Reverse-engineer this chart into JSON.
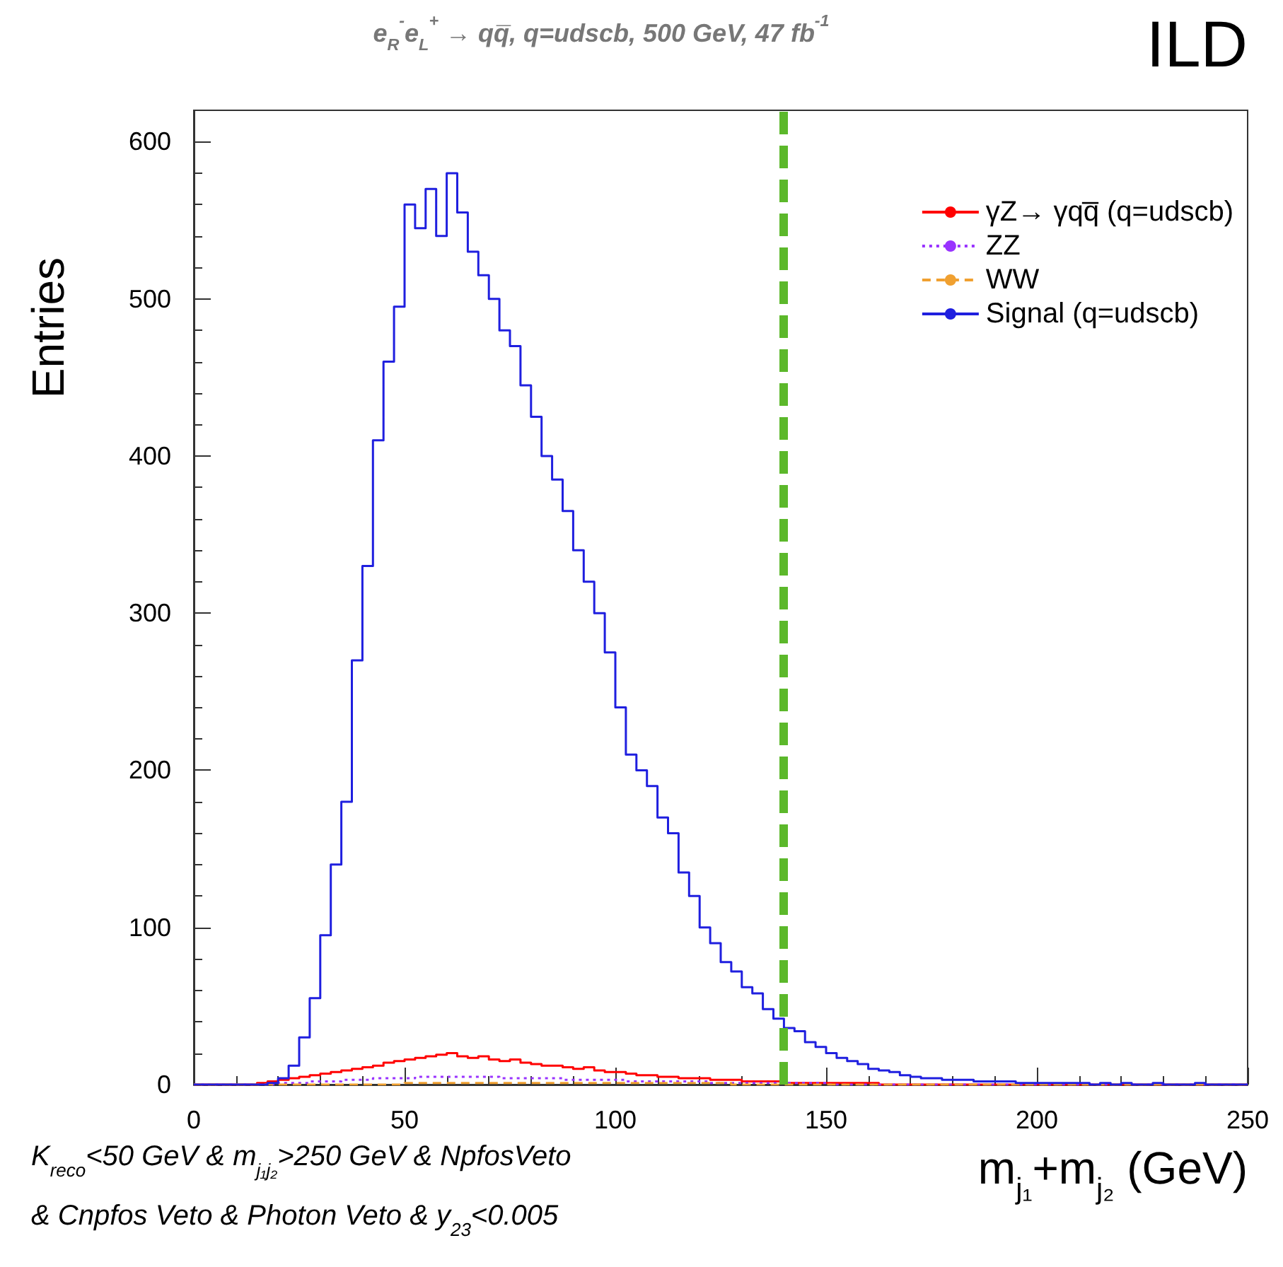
{
  "chart_data": {
    "type": "histogram",
    "title": "e$_{R}$$^{-}$e$_{L}$$^{+}$ → qq̅, q=udscb, 500 GeV, 47 fb$^{-1}$",
    "xlabel": "m$_{j₁}$+m$_{j₂}$ (GeV)",
    "ylabel": "Entries",
    "bins": [
      0,
      2.5,
      5,
      7.5,
      10,
      12.5,
      15,
      17.5,
      20,
      22.5,
      25,
      27.5,
      30,
      32.5,
      35,
      37.5,
      40,
      42.5,
      45,
      47.5,
      50,
      52.5,
      55,
      57.5,
      60,
      62.5,
      65,
      67.5,
      70,
      72.5,
      75,
      77.5,
      80,
      82.5,
      85,
      87.5,
      90,
      92.5,
      95,
      97.5,
      100,
      102.5,
      105,
      107.5,
      110,
      112.5,
      115,
      117.5,
      120,
      122.5,
      125,
      127.5,
      130,
      132.5,
      135,
      137.5,
      140,
      142.5,
      145,
      147.5,
      150,
      152.5,
      155,
      157.5,
      160,
      162.5,
      165,
      167.5,
      170,
      172.5,
      175,
      177.5,
      180,
      182.5,
      185,
      187.5,
      190,
      192.5,
      195,
      197.5,
      200,
      202.5,
      205,
      207.5,
      210,
      212.5,
      215,
      217.5,
      220,
      222.5,
      225,
      227.5,
      230,
      232.5,
      235,
      237.5,
      240,
      242.5,
      245,
      247.5,
      250
    ],
    "series": [
      {
        "name": "γZ→ γqq̅ (q=udscb)",
        "color": "#ff0000",
        "line_style": "solid",
        "values": [
          0,
          0,
          0,
          0,
          0,
          0,
          1,
          2,
          3,
          4,
          5,
          6,
          7,
          8,
          9,
          10,
          11,
          12,
          14,
          15,
          16,
          17,
          18,
          19,
          20,
          18,
          17,
          18,
          16,
          15,
          16,
          14,
          13,
          12,
          12,
          11,
          10,
          11,
          9,
          8,
          8,
          7,
          6,
          6,
          5,
          5,
          4,
          4,
          4,
          3,
          3,
          3,
          2,
          2,
          2,
          2,
          1,
          1,
          1,
          1,
          1,
          1,
          1,
          1,
          1,
          0,
          0,
          0,
          0,
          0,
          0,
          0,
          0,
          0,
          0,
          0,
          0,
          0,
          0,
          0,
          0,
          0,
          0,
          0,
          0,
          0,
          0,
          0,
          0,
          0,
          0,
          0,
          0,
          0,
          0,
          0,
          0,
          0,
          0,
          0
        ]
      },
      {
        "name": "ZZ",
        "color": "#9933ff",
        "line_style": "dotted",
        "values": [
          0,
          0,
          0,
          0,
          0,
          0,
          0,
          0,
          1,
          1,
          1,
          2,
          2,
          2,
          3,
          3,
          3,
          4,
          4,
          4,
          4,
          5,
          5,
          5,
          5,
          5,
          5,
          5,
          5,
          4,
          4,
          4,
          4,
          4,
          4,
          3,
          3,
          3,
          3,
          3,
          3,
          2,
          2,
          2,
          2,
          2,
          2,
          2,
          2,
          1,
          1,
          1,
          1,
          1,
          1,
          1,
          1,
          1,
          1,
          1,
          0,
          0,
          0,
          0,
          0,
          0,
          0,
          0,
          0,
          0,
          0,
          0,
          0,
          0,
          0,
          0,
          0,
          0,
          0,
          0,
          0,
          0,
          0,
          0,
          0,
          0,
          0,
          0,
          0,
          0,
          0,
          0,
          0,
          0,
          0,
          0,
          0,
          0,
          0,
          0
        ]
      },
      {
        "name": "WW",
        "color": "#f0a030",
        "line_style": "dashed",
        "values": [
          0,
          0,
          0,
          0,
          0,
          0,
          0,
          0,
          0,
          0,
          0,
          0,
          0,
          0,
          0,
          0,
          0,
          0,
          0,
          0,
          1,
          1,
          1,
          1,
          1,
          1,
          1,
          1,
          1,
          1,
          1,
          1,
          1,
          1,
          1,
          1,
          1,
          1,
          1,
          1,
          1,
          1,
          1,
          1,
          1,
          1,
          1,
          1,
          1,
          1,
          1,
          0,
          0,
          0,
          0,
          0,
          0,
          0,
          0,
          0,
          0,
          0,
          0,
          0,
          0,
          0,
          0,
          0,
          0,
          0,
          0,
          0,
          0,
          0,
          0,
          0,
          0,
          0,
          0,
          0,
          0,
          0,
          0,
          0,
          0,
          0,
          0,
          0,
          0,
          0,
          0,
          0,
          0,
          0,
          0,
          0,
          0,
          0,
          0,
          0
        ]
      },
      {
        "name": "Signal (q=udscb)",
        "color": "#1f1fdf",
        "line_style": "solid",
        "values": [
          0,
          0,
          0,
          0,
          0,
          0,
          0,
          1,
          4,
          12,
          30,
          55,
          95,
          140,
          180,
          270,
          330,
          410,
          460,
          495,
          560,
          545,
          570,
          540,
          580,
          555,
          530,
          515,
          500,
          480,
          470,
          445,
          425,
          400,
          385,
          365,
          340,
          320,
          300,
          275,
          240,
          210,
          200,
          190,
          170,
          160,
          135,
          120,
          100,
          90,
          78,
          72,
          62,
          58,
          48,
          42,
          36,
          34,
          27,
          24,
          20,
          17,
          15,
          13,
          10,
          9,
          8,
          6,
          5,
          4,
          4,
          3,
          3,
          3,
          2,
          2,
          2,
          2,
          1,
          1,
          1,
          1,
          1,
          1,
          1,
          0,
          1,
          0,
          1,
          0,
          0,
          1,
          0,
          0,
          0,
          1,
          0,
          0,
          0,
          0
        ]
      }
    ],
    "xlim": [
      0,
      250
    ],
    "xticks": [
      0,
      50,
      100,
      150,
      200,
      250
    ],
    "ylim": [
      0,
      620
    ],
    "yticks": [
      0,
      100,
      200,
      300,
      400,
      500,
      600
    ],
    "legend": "top right",
    "ref_lines": [
      {
        "axis": "x",
        "value": 140,
        "color": "#5cb82b",
        "line_style": "dashed"
      }
    ],
    "annotations": [
      "ILD",
      "K$_{reco}$<50 GeV & m$_{j₁j₂}$>250 GeV & NpfosVeto",
      "& Cnpfos Veto & Photon Veto & y$_{23}$<0.005"
    ]
  }
}
